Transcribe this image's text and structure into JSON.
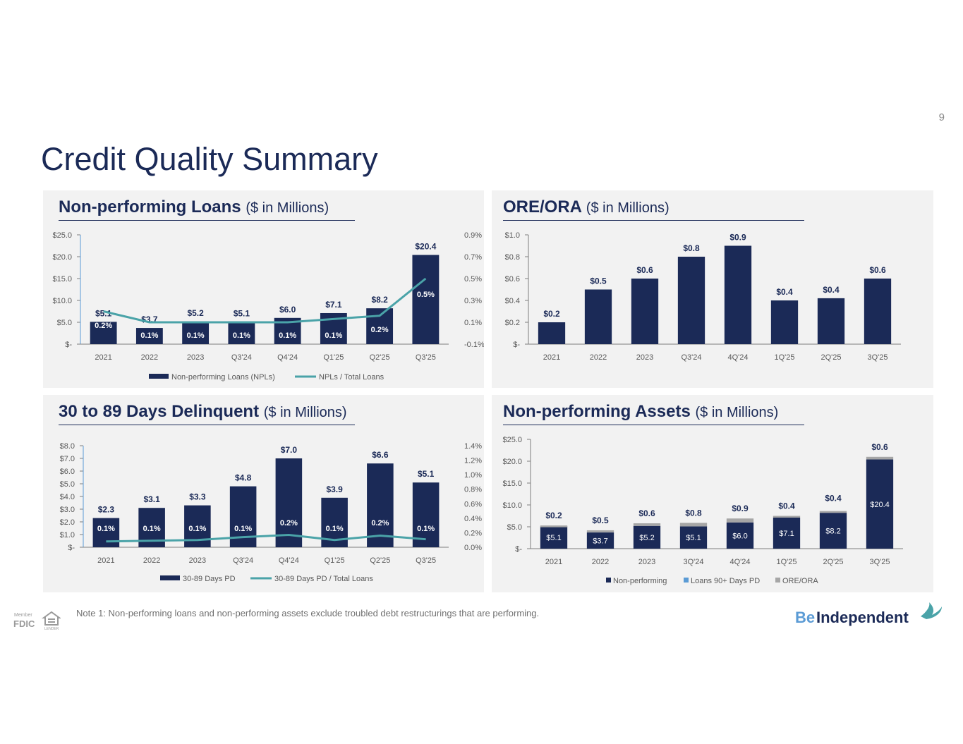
{
  "page": {
    "number": "9",
    "title": "Credit Quality Summary"
  },
  "footnote": "Note 1: Non-performing loans and non-performing assets exclude troubled debt restructurings that are performing.",
  "logo": {
    "prefix": "Be",
    "name": "Independent"
  },
  "colors": {
    "navy": "#1b2a57",
    "teal": "#4aa3a8",
    "grey": "#a6a6a6",
    "blue": "#5b9bd5",
    "panel": "#f2f2f2"
  },
  "chart_data": [
    {
      "id": "npl",
      "type": "bar+line",
      "title": "Non-performing Loans",
      "unit_label": "($ in Millions)",
      "categories": [
        "2021",
        "2022",
        "2023",
        "Q3'24",
        "Q4'24",
        "Q1'25",
        "Q2'25",
        "Q3'25"
      ],
      "bar_series": {
        "name": "Non-performing Loans (NPLs)",
        "values": [
          5.1,
          3.7,
          5.2,
          5.1,
          6.0,
          7.1,
          8.2,
          20.4
        ],
        "labels": [
          "$5.1",
          "$3.7",
          "$5.2",
          "$5.1",
          "$6.0",
          "$7.1",
          "$8.2",
          "$20.4"
        ]
      },
      "line_series": {
        "name": "NPLs / Total Loans",
        "values": [
          0.2,
          0.1,
          0.1,
          0.1,
          0.1,
          0.13,
          0.16,
          0.5
        ],
        "labels": [
          "0.2%",
          "0.1%",
          "0.1%",
          "0.1%",
          "0.1%",
          "0.1%",
          "0.2%",
          "0.5%"
        ]
      },
      "y_left": {
        "min": 0,
        "max": 25,
        "ticks": [
          "$-",
          "$5.0",
          "$10.0",
          "$15.0",
          "$20.0",
          "$25.0"
        ]
      },
      "y_right": {
        "min": -0.1,
        "max": 0.9,
        "ticks": [
          "-0.1%",
          "0.1%",
          "0.3%",
          "0.5%",
          "0.7%",
          "0.9%"
        ]
      }
    },
    {
      "id": "ore",
      "type": "bar",
      "title": "ORE/ORA",
      "unit_label": "($ in Millions)",
      "categories": [
        "2021",
        "2022",
        "2023",
        "Q3'24",
        "4Q'24",
        "1Q'25",
        "2Q'25",
        "3Q'25"
      ],
      "bar_series": {
        "name": "ORE/ORA",
        "values": [
          0.2,
          0.5,
          0.6,
          0.8,
          0.9,
          0.4,
          0.42,
          0.6
        ],
        "labels": [
          "$0.2",
          "$0.5",
          "$0.6",
          "$0.8",
          "$0.9",
          "$0.4",
          "$0.4",
          "$0.6"
        ]
      },
      "y_left": {
        "min": 0,
        "max": 1.0,
        "ticks": [
          "$-",
          "$0.2",
          "$0.4",
          "$0.6",
          "$0.8",
          "$1.0"
        ]
      }
    },
    {
      "id": "delinq",
      "type": "bar+line",
      "title": "30 to 89 Days Delinquent",
      "unit_label": "($ in Millions)",
      "categories": [
        "2021",
        "2022",
        "2023",
        "Q3'24",
        "Q4'24",
        "Q1'25",
        "Q2'25",
        "Q3'25"
      ],
      "bar_series": {
        "name": "30-89 Days PD",
        "values": [
          2.3,
          3.1,
          3.3,
          4.8,
          7.0,
          3.9,
          6.6,
          5.1
        ],
        "labels": [
          "$2.3",
          "$3.1",
          "$3.3",
          "$4.8",
          "$7.0",
          "$3.9",
          "$6.6",
          "$5.1"
        ]
      },
      "line_series": {
        "name": "30-89 Days PD / Total Loans",
        "values": [
          0.08,
          0.09,
          0.1,
          0.14,
          0.17,
          0.1,
          0.16,
          0.11
        ],
        "labels": [
          "0.1%",
          "0.1%",
          "0.1%",
          "0.1%",
          "0.2%",
          "0.1%",
          "0.2%",
          "0.1%"
        ]
      },
      "y_left": {
        "min": 0,
        "max": 8,
        "ticks": [
          "$-",
          "$1.0",
          "$2.0",
          "$3.0",
          "$4.0",
          "$5.0",
          "$6.0",
          "$7.0",
          "$8.0"
        ]
      },
      "y_right": {
        "min": 0,
        "max": 1.4,
        "ticks": [
          "0.0%",
          "0.2%",
          "0.4%",
          "0.6%",
          "0.8%",
          "1.0%",
          "1.2%",
          "1.4%"
        ]
      }
    },
    {
      "id": "npa",
      "type": "stacked-bar",
      "title": "Non-performing Assets",
      "unit_label": "($ in Millions)",
      "categories": [
        "2021",
        "2022",
        "2023",
        "3Q'24",
        "4Q'24",
        "1Q'25",
        "2Q'25",
        "3Q'25"
      ],
      "series": [
        {
          "name": "Non-performing",
          "color": "#1b2a57",
          "values": [
            5.1,
            3.7,
            5.2,
            5.1,
            6.0,
            7.1,
            8.2,
            20.4
          ],
          "labels": [
            "$5.1",
            "$3.7",
            "$5.2",
            "$5.1",
            "$6.0",
            "$7.1",
            "$8.2",
            "$20.4"
          ]
        },
        {
          "name": "Loans 90+ Days PD",
          "color": "#5b9bd5",
          "values": [
            0,
            0,
            0,
            0,
            0,
            0,
            0,
            0
          ]
        },
        {
          "name": "ORE/ORA",
          "color": "#a6a6a6",
          "values": [
            0.2,
            0.5,
            0.6,
            0.8,
            0.9,
            0.4,
            0.4,
            0.6
          ],
          "labels": [
            "$0.2",
            "$0.5",
            "$0.6",
            "$0.8",
            "$0.9",
            "$0.4",
            "$0.4",
            "$0.6"
          ]
        }
      ],
      "y_left": {
        "min": 0,
        "max": 25,
        "ticks": [
          "$-",
          "$5.0",
          "$10.0",
          "$15.0",
          "$20.0",
          "$25.0"
        ]
      }
    }
  ]
}
